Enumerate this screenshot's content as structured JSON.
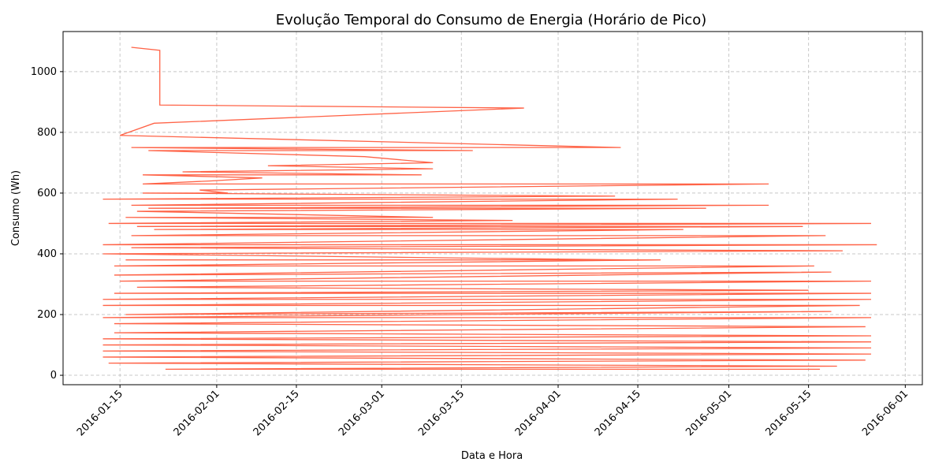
{
  "chart_data": {
    "type": "line",
    "title": "Evolução Temporal do Consumo de Energia (Horário de Pico)",
    "x_label": "Data e Hora",
    "y_label": "Consumo (Wh)",
    "x": [
      "2016-01-17",
      "2016-01-22",
      "2016-01-22",
      "2016-03-26",
      "2016-01-21",
      "2016-01-15",
      "2016-04-12",
      "2016-01-17",
      "2016-03-17",
      "2016-01-20",
      "2016-02-27",
      "2016-03-10",
      "2016-02-10",
      "2016-03-10",
      "2016-01-26",
      "2016-03-08",
      "2016-01-19",
      "2016-02-09",
      "2016-01-31",
      "2016-01-19",
      "2016-05-08",
      "2016-01-29",
      "2016-02-03",
      "2016-01-19",
      "2016-04-11",
      "2016-01-12",
      "2016-04-22",
      "2016-01-17",
      "2016-05-08",
      "2016-01-20",
      "2016-04-27",
      "2016-01-18",
      "2016-03-10",
      "2016-01-16",
      "2016-03-24",
      "2016-01-13",
      "2016-05-26",
      "2016-01-18",
      "2016-05-14",
      "2016-01-21",
      "2016-04-23",
      "2016-01-17",
      "2016-05-18",
      "2016-01-12",
      "2016-05-27",
      "2016-01-17",
      "2016-05-21",
      "2016-01-12",
      "2016-04-13",
      "2016-01-16",
      "2016-04-19",
      "2016-01-14",
      "2016-05-16",
      "2016-01-14",
      "2016-05-19",
      "2016-01-15",
      "2016-05-26",
      "2016-01-18",
      "2016-05-15",
      "2016-01-14",
      "2016-05-26",
      "2016-01-12",
      "2016-05-26",
      "2016-01-12",
      "2016-05-24",
      "2016-01-16",
      "2016-05-19",
      "2016-01-12",
      "2016-05-26",
      "2016-01-14",
      "2016-05-25",
      "2016-01-14",
      "2016-05-26",
      "2016-01-12",
      "2016-05-26",
      "2016-01-12",
      "2016-05-26",
      "2016-01-12",
      "2016-05-26",
      "2016-01-12",
      "2016-05-25",
      "2016-01-13",
      "2016-05-20",
      "2016-01-23",
      "2016-05-17"
    ],
    "series": [
      {
        "name": "Consumo",
        "color": "#ff6347",
        "values": [
          1080,
          1070,
          890,
          880,
          830,
          790,
          750,
          750,
          740,
          740,
          720,
          700,
          690,
          680,
          670,
          660,
          660,
          650,
          640,
          630,
          630,
          610,
          600,
          600,
          590,
          580,
          580,
          560,
          560,
          550,
          550,
          540,
          520,
          520,
          510,
          500,
          500,
          490,
          490,
          480,
          480,
          460,
          460,
          430,
          430,
          420,
          410,
          400,
          380,
          380,
          380,
          360,
          360,
          330,
          340,
          310,
          310,
          290,
          280,
          270,
          270,
          250,
          250,
          230,
          230,
          200,
          210,
          190,
          190,
          170,
          160,
          140,
          130,
          120,
          110,
          100,
          90,
          80,
          70,
          60,
          50,
          40,
          30,
          20,
          20
        ]
      }
    ],
    "xlim": [
      "2016-01-05",
      "2016-06-04"
    ],
    "xticks": [
      "2016-01-15",
      "2016-02-01",
      "2016-02-15",
      "2016-03-01",
      "2016-03-15",
      "2016-04-01",
      "2016-04-15",
      "2016-05-01",
      "2016-05-15",
      "2016-06-01"
    ],
    "ylim": [
      -31,
      1132
    ],
    "yticks": [
      0,
      200,
      400,
      600,
      800,
      1000
    ],
    "grid": true
  }
}
